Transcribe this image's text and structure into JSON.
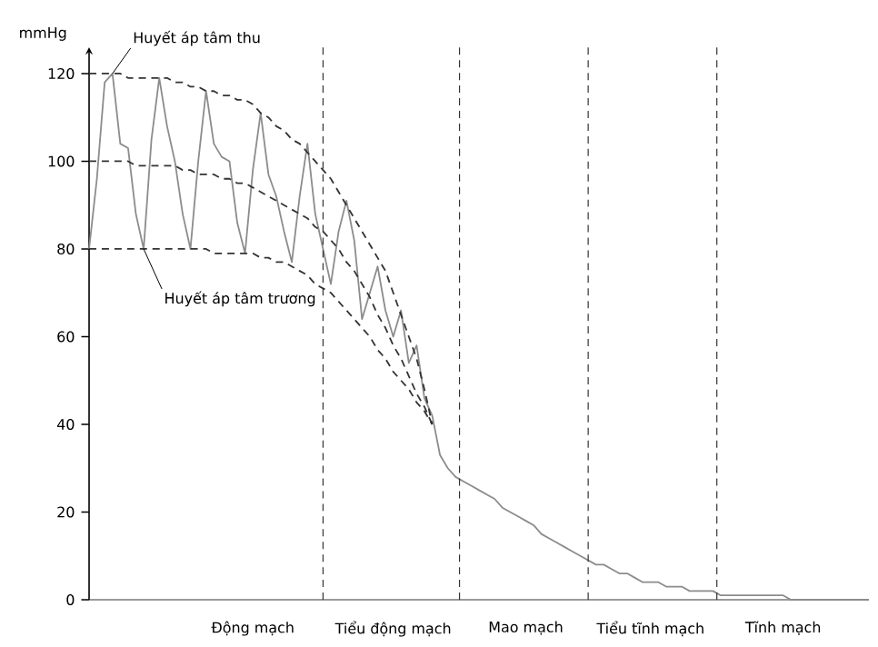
{
  "chart_data": {
    "type": "line",
    "ylabel": "mmHg",
    "ylim": [
      0,
      126
    ],
    "categories": [
      null,
      null,
      null,
      null,
      null,
      null,
      null,
      null,
      null,
      null,
      null,
      null,
      null,
      null,
      null,
      null,
      null,
      null,
      null,
      null,
      null,
      "Động mạch",
      null,
      null,
      null,
      null,
      null,
      null,
      null,
      null,
      null,
      null,
      null,
      null,
      null,
      null,
      null,
      null,
      null,
      "Tiểu động mạch",
      null,
      null,
      null,
      null,
      null,
      null,
      null,
      null,
      null,
      null,
      null,
      null,
      null,
      null,
      null,
      null,
      "Mao mạch",
      null,
      null,
      null,
      null,
      null,
      null,
      null,
      null,
      null,
      null,
      null,
      null,
      null,
      null,
      null,
      "Tiểu tĩnh mạch",
      null,
      null,
      null,
      null,
      null,
      null,
      null,
      null,
      null,
      null,
      null,
      null,
      null,
      null,
      null,
      null,
      "Tĩnh mạch",
      null,
      null,
      null,
      null,
      null,
      null,
      null,
      null,
      null,
      null,
      null
    ],
    "yticks": [
      0,
      20,
      40,
      60,
      80,
      100,
      120
    ],
    "grid": false,
    "series": [
      {
        "color": "#8c8c8c",
        "line_style": "solid",
        "values": [
          80,
          96,
          118,
          120,
          104,
          103,
          88,
          80,
          105,
          119,
          108,
          100,
          88,
          80,
          100,
          116,
          104,
          101,
          100,
          86,
          79,
          98,
          111,
          97,
          92,
          84,
          77,
          92,
          104,
          88,
          80,
          72,
          84,
          91,
          82,
          64,
          70,
          76,
          66,
          60,
          66,
          54,
          58,
          46,
          42,
          33,
          30,
          28,
          27,
          26,
          25,
          24,
          23,
          21,
          20,
          19,
          18,
          17,
          15,
          14,
          13,
          12,
          11,
          10,
          9,
          8,
          8,
          7,
          6,
          6,
          5,
          4,
          4,
          4,
          3,
          3,
          3,
          2,
          2,
          2,
          2,
          1,
          1,
          1,
          1,
          1,
          1,
          1,
          1,
          1,
          0,
          0,
          0,
          0,
          0,
          0,
          0,
          0,
          0,
          0,
          0
        ]
      },
      {
        "color": "#333333",
        "line_style": "dashed",
        "values": [
          120,
          120,
          120,
          120,
          120,
          119,
          119,
          119,
          119,
          119,
          119,
          118,
          118,
          117,
          117,
          116,
          116,
          115,
          115,
          114,
          114,
          113,
          111,
          110,
          108,
          107,
          105,
          104,
          102,
          100,
          98,
          96,
          93,
          90,
          87,
          84,
          81,
          78,
          75,
          70,
          65,
          60,
          55,
          48,
          40,
          null,
          null,
          null,
          null,
          null,
          null,
          null,
          null,
          null,
          null,
          null,
          null,
          null,
          null,
          null,
          null,
          null,
          null,
          null,
          null,
          null,
          null,
          null,
          null,
          null,
          null,
          null,
          null,
          null,
          null,
          null,
          null,
          null,
          null,
          null,
          null,
          null,
          null,
          null,
          null,
          null,
          null,
          null,
          null,
          null,
          null,
          null,
          null,
          null,
          null,
          null,
          null,
          null,
          null,
          null,
          null
        ]
      },
      {
        "color": "#333333",
        "line_style": "dashed",
        "values": [
          100,
          100,
          100,
          100,
          100,
          100,
          99,
          99,
          99,
          99,
          99,
          99,
          98,
          98,
          97,
          97,
          97,
          96,
          96,
          95,
          95,
          94,
          93,
          92,
          91,
          90,
          89,
          88,
          87,
          85,
          84,
          82,
          80,
          77,
          75,
          72,
          69,
          65,
          62,
          58,
          55,
          51,
          47,
          44,
          40,
          null,
          null,
          null,
          null,
          null,
          null,
          null,
          null,
          null,
          null,
          null,
          null,
          null,
          null,
          null,
          null,
          null,
          null,
          null,
          null,
          null,
          null,
          null,
          null,
          null,
          null,
          null,
          null,
          null,
          null,
          null,
          null,
          null,
          null,
          null,
          null,
          null,
          null,
          null,
          null,
          null,
          null,
          null,
          null,
          null,
          null,
          null,
          null,
          null,
          null,
          null,
          null,
          null,
          null,
          null,
          null
        ]
      },
      {
        "color": "#333333",
        "line_style": "dashed",
        "values": [
          80,
          80,
          80,
          80,
          80,
          80,
          80,
          80,
          80,
          80,
          80,
          80,
          80,
          80,
          80,
          80,
          79,
          79,
          79,
          79,
          79,
          79,
          78,
          78,
          77,
          77,
          76,
          75,
          74,
          72,
          71,
          70,
          68,
          66,
          64,
          62,
          60,
          57,
          55,
          52,
          50,
          48,
          45,
          43,
          40,
          null,
          null,
          null,
          null,
          null,
          null,
          null,
          null,
          null,
          null,
          null,
          null,
          null,
          null,
          null,
          null,
          null,
          null,
          null,
          null,
          null,
          null,
          null,
          null,
          null,
          null,
          null,
          null,
          null,
          null,
          null,
          null,
          null,
          null,
          null,
          null,
          null,
          null,
          null,
          null,
          null,
          null,
          null,
          null,
          null,
          null,
          null,
          null,
          null,
          null,
          null,
          null,
          null,
          null,
          null,
          null
        ]
      }
    ],
    "annotations": [
      "Huyết áp tâm thu",
      {
        "text": "Huyết áp tâm trương",
        "y": 80
      }
    ]
  }
}
